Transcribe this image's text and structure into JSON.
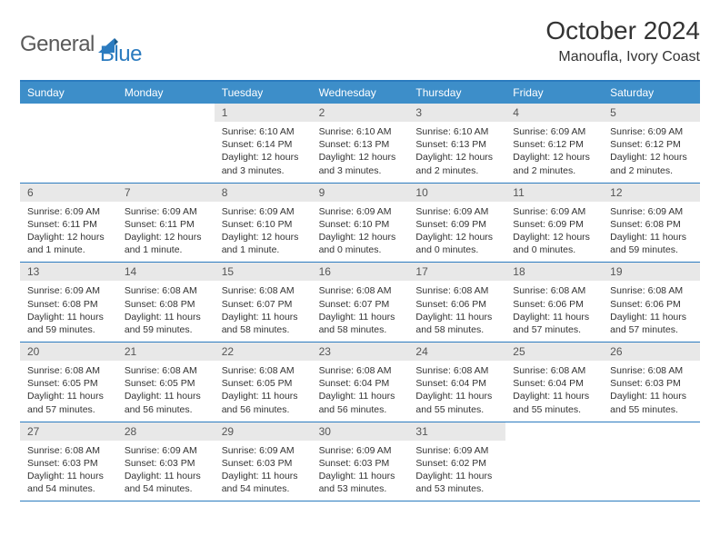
{
  "logo": {
    "part1": "General",
    "part2": "Blue"
  },
  "title": "October 2024",
  "subtitle": "Manoufla, Ivory Coast",
  "colors": {
    "header_bg": "#3d8ec9",
    "border": "#2b7bbf",
    "daynum_bg": "#e8e8e8",
    "text": "#333333",
    "logo_gray": "#5a5a5a",
    "logo_blue": "#2b7bbf"
  },
  "weekdays": [
    "Sunday",
    "Monday",
    "Tuesday",
    "Wednesday",
    "Thursday",
    "Friday",
    "Saturday"
  ],
  "weeks": [
    [
      {
        "num": "",
        "sunrise": "",
        "sunset": "",
        "daylight": ""
      },
      {
        "num": "",
        "sunrise": "",
        "sunset": "",
        "daylight": ""
      },
      {
        "num": "1",
        "sunrise": "Sunrise: 6:10 AM",
        "sunset": "Sunset: 6:14 PM",
        "daylight": "Daylight: 12 hours and 3 minutes."
      },
      {
        "num": "2",
        "sunrise": "Sunrise: 6:10 AM",
        "sunset": "Sunset: 6:13 PM",
        "daylight": "Daylight: 12 hours and 3 minutes."
      },
      {
        "num": "3",
        "sunrise": "Sunrise: 6:10 AM",
        "sunset": "Sunset: 6:13 PM",
        "daylight": "Daylight: 12 hours and 2 minutes."
      },
      {
        "num": "4",
        "sunrise": "Sunrise: 6:09 AM",
        "sunset": "Sunset: 6:12 PM",
        "daylight": "Daylight: 12 hours and 2 minutes."
      },
      {
        "num": "5",
        "sunrise": "Sunrise: 6:09 AM",
        "sunset": "Sunset: 6:12 PM",
        "daylight": "Daylight: 12 hours and 2 minutes."
      }
    ],
    [
      {
        "num": "6",
        "sunrise": "Sunrise: 6:09 AM",
        "sunset": "Sunset: 6:11 PM",
        "daylight": "Daylight: 12 hours and 1 minute."
      },
      {
        "num": "7",
        "sunrise": "Sunrise: 6:09 AM",
        "sunset": "Sunset: 6:11 PM",
        "daylight": "Daylight: 12 hours and 1 minute."
      },
      {
        "num": "8",
        "sunrise": "Sunrise: 6:09 AM",
        "sunset": "Sunset: 6:10 PM",
        "daylight": "Daylight: 12 hours and 1 minute."
      },
      {
        "num": "9",
        "sunrise": "Sunrise: 6:09 AM",
        "sunset": "Sunset: 6:10 PM",
        "daylight": "Daylight: 12 hours and 0 minutes."
      },
      {
        "num": "10",
        "sunrise": "Sunrise: 6:09 AM",
        "sunset": "Sunset: 6:09 PM",
        "daylight": "Daylight: 12 hours and 0 minutes."
      },
      {
        "num": "11",
        "sunrise": "Sunrise: 6:09 AM",
        "sunset": "Sunset: 6:09 PM",
        "daylight": "Daylight: 12 hours and 0 minutes."
      },
      {
        "num": "12",
        "sunrise": "Sunrise: 6:09 AM",
        "sunset": "Sunset: 6:08 PM",
        "daylight": "Daylight: 11 hours and 59 minutes."
      }
    ],
    [
      {
        "num": "13",
        "sunrise": "Sunrise: 6:09 AM",
        "sunset": "Sunset: 6:08 PM",
        "daylight": "Daylight: 11 hours and 59 minutes."
      },
      {
        "num": "14",
        "sunrise": "Sunrise: 6:08 AM",
        "sunset": "Sunset: 6:08 PM",
        "daylight": "Daylight: 11 hours and 59 minutes."
      },
      {
        "num": "15",
        "sunrise": "Sunrise: 6:08 AM",
        "sunset": "Sunset: 6:07 PM",
        "daylight": "Daylight: 11 hours and 58 minutes."
      },
      {
        "num": "16",
        "sunrise": "Sunrise: 6:08 AM",
        "sunset": "Sunset: 6:07 PM",
        "daylight": "Daylight: 11 hours and 58 minutes."
      },
      {
        "num": "17",
        "sunrise": "Sunrise: 6:08 AM",
        "sunset": "Sunset: 6:06 PM",
        "daylight": "Daylight: 11 hours and 58 minutes."
      },
      {
        "num": "18",
        "sunrise": "Sunrise: 6:08 AM",
        "sunset": "Sunset: 6:06 PM",
        "daylight": "Daylight: 11 hours and 57 minutes."
      },
      {
        "num": "19",
        "sunrise": "Sunrise: 6:08 AM",
        "sunset": "Sunset: 6:06 PM",
        "daylight": "Daylight: 11 hours and 57 minutes."
      }
    ],
    [
      {
        "num": "20",
        "sunrise": "Sunrise: 6:08 AM",
        "sunset": "Sunset: 6:05 PM",
        "daylight": "Daylight: 11 hours and 57 minutes."
      },
      {
        "num": "21",
        "sunrise": "Sunrise: 6:08 AM",
        "sunset": "Sunset: 6:05 PM",
        "daylight": "Daylight: 11 hours and 56 minutes."
      },
      {
        "num": "22",
        "sunrise": "Sunrise: 6:08 AM",
        "sunset": "Sunset: 6:05 PM",
        "daylight": "Daylight: 11 hours and 56 minutes."
      },
      {
        "num": "23",
        "sunrise": "Sunrise: 6:08 AM",
        "sunset": "Sunset: 6:04 PM",
        "daylight": "Daylight: 11 hours and 56 minutes."
      },
      {
        "num": "24",
        "sunrise": "Sunrise: 6:08 AM",
        "sunset": "Sunset: 6:04 PM",
        "daylight": "Daylight: 11 hours and 55 minutes."
      },
      {
        "num": "25",
        "sunrise": "Sunrise: 6:08 AM",
        "sunset": "Sunset: 6:04 PM",
        "daylight": "Daylight: 11 hours and 55 minutes."
      },
      {
        "num": "26",
        "sunrise": "Sunrise: 6:08 AM",
        "sunset": "Sunset: 6:03 PM",
        "daylight": "Daylight: 11 hours and 55 minutes."
      }
    ],
    [
      {
        "num": "27",
        "sunrise": "Sunrise: 6:08 AM",
        "sunset": "Sunset: 6:03 PM",
        "daylight": "Daylight: 11 hours and 54 minutes."
      },
      {
        "num": "28",
        "sunrise": "Sunrise: 6:09 AM",
        "sunset": "Sunset: 6:03 PM",
        "daylight": "Daylight: 11 hours and 54 minutes."
      },
      {
        "num": "29",
        "sunrise": "Sunrise: 6:09 AM",
        "sunset": "Sunset: 6:03 PM",
        "daylight": "Daylight: 11 hours and 54 minutes."
      },
      {
        "num": "30",
        "sunrise": "Sunrise: 6:09 AM",
        "sunset": "Sunset: 6:03 PM",
        "daylight": "Daylight: 11 hours and 53 minutes."
      },
      {
        "num": "31",
        "sunrise": "Sunrise: 6:09 AM",
        "sunset": "Sunset: 6:02 PM",
        "daylight": "Daylight: 11 hours and 53 minutes."
      },
      {
        "num": "",
        "sunrise": "",
        "sunset": "",
        "daylight": ""
      },
      {
        "num": "",
        "sunrise": "",
        "sunset": "",
        "daylight": ""
      }
    ]
  ]
}
